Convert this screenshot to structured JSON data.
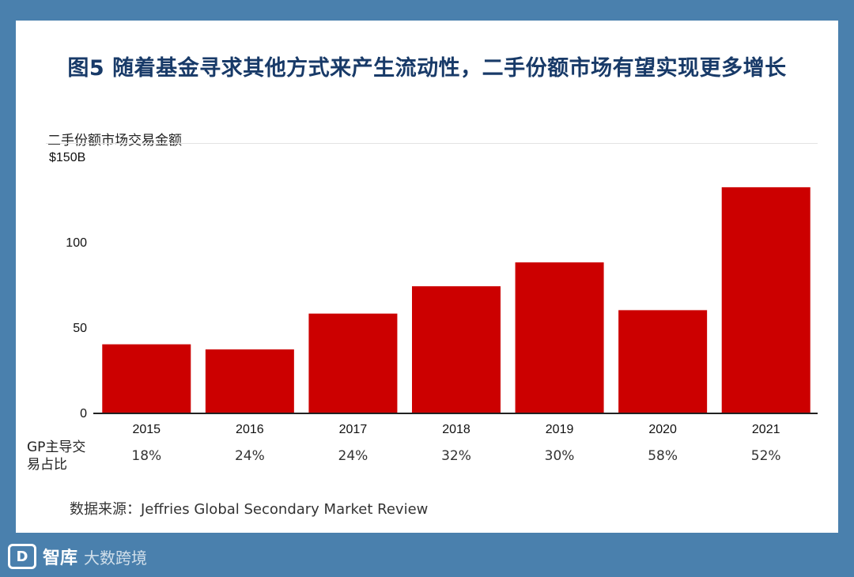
{
  "title": "图5 随着基金寻求其他方式来产生流动性，二手份额市场有望实现更多增长",
  "chart_data": {
    "type": "bar",
    "title": "二手份额市场交易金额",
    "categories": [
      "2015",
      "2016",
      "2017",
      "2018",
      "2019",
      "2020",
      "2021"
    ],
    "values": [
      40,
      37,
      58,
      74,
      88,
      60,
      132
    ],
    "ylim": [
      0,
      150
    ],
    "yticks": [
      {
        "value": 0,
        "label": "0"
      },
      {
        "value": 50,
        "label": "50"
      },
      {
        "value": 100,
        "label": "100"
      },
      {
        "value": 150,
        "label": "$150B"
      }
    ],
    "bar_color": "#cc0000",
    "xlabel": "",
    "ylabel": ""
  },
  "gp_share": {
    "label": "GP主导交易占比",
    "values": [
      "18%",
      "24%",
      "24%",
      "32%",
      "30%",
      "58%",
      "52%"
    ]
  },
  "source": "数据来源：Jeffries Global Secondary Market Review",
  "logo": {
    "mark": "D",
    "name": "智库",
    "watermark": "大数跨境"
  }
}
